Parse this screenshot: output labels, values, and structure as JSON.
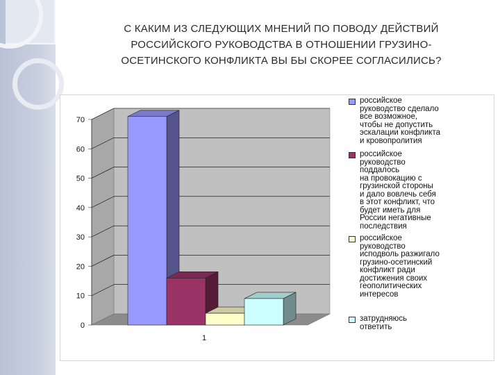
{
  "slide": {
    "title_lines": [
      "С КАКИМ ИЗ СЛЕДУЮЩИХ МНЕНИЙ ПО ПОВОДУ ДЕЙСТВИЙ",
      "РОССИЙСКОГО РУКОВОДСТВА В ОТНОШЕНИИ ГРУЗИНО-",
      "ОСЕТИНСКОГО КОНФЛИКТА ВЫ БЫ СКОРЕЕ СОГЛАСИЛИСЬ?"
    ]
  },
  "chart_data": {
    "type": "bar",
    "style": "3d-clustered-column",
    "categories": [
      "1"
    ],
    "ylim": [
      0,
      70
    ],
    "yticks": [
      0,
      10,
      20,
      30,
      40,
      50,
      60,
      70
    ],
    "grid": true,
    "legend_position": "right",
    "series": [
      {
        "name": "российское руководство сделало все возможное, чтобы не допустить эскалации конфликта и кровопролития",
        "legend_lines": [
          "российское",
          "руководство сделало",
          "все возможное,",
          "чтобы не допустить",
          "эскалации конфликта",
          "и кровопролития"
        ],
        "values": [
          71
        ],
        "color": "#9999ff"
      },
      {
        "name": "российское руководство поддалось на провокацию с грузинской стороны и дало вовлечь себя в этот конфликт, что будет иметь для России негативные последствия",
        "legend_lines": [
          "российское",
          "руководство",
          "поддалось",
          "на провокацию с",
          "грузинской стороны",
          "и дало вовлечь себя",
          "в этот конфликт, что",
          "будет иметь для",
          "России негативные",
          "последствия"
        ],
        "values": [
          16
        ],
        "color": "#993366"
      },
      {
        "name": "российское руководство исподволь разжигало грузино-осетинский конфликт ради достижения своих геополитических интересов",
        "legend_lines": [
          "российское",
          "руководство",
          "исподволь разжигало",
          "грузино-осетинский",
          "конфликт ради",
          "достижения своих",
          "геополитических",
          "интересов"
        ],
        "values": [
          4
        ],
        "color": "#ffffcc"
      },
      {
        "name": "затрудняюсь ответить",
        "legend_lines": [
          "затрудняюсь",
          "ответить"
        ],
        "values": [
          9
        ],
        "color": "#ccffff"
      }
    ]
  }
}
